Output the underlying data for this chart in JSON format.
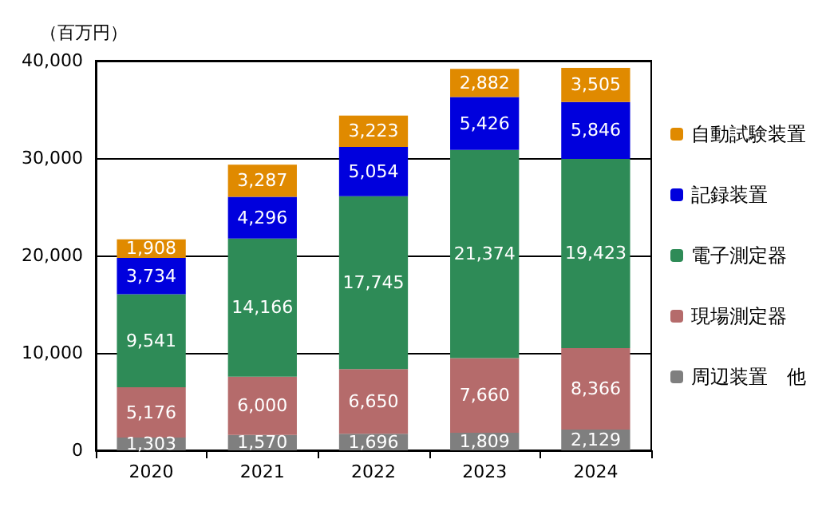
{
  "chart_data": {
    "type": "bar",
    "stacked": true,
    "ylabel": "（百万円）",
    "categories": [
      "2020",
      "2021",
      "2022",
      "2023",
      "2024"
    ],
    "series": [
      {
        "name": "周辺装置　他",
        "color": "#7f7f7f",
        "values": [
          1303,
          1570,
          1696,
          1809,
          2129
        ],
        "value_labels": [
          "1,303",
          "1,570",
          "1,696",
          "1,809",
          "2,129"
        ]
      },
      {
        "name": "現場測定器",
        "color": "#b56b6b",
        "values": [
          5176,
          6000,
          6650,
          7660,
          8366
        ],
        "value_labels": [
          "5,176",
          "6,000",
          "6,650",
          "7,660",
          "8,366"
        ]
      },
      {
        "name": "電子測定器",
        "color": "#2e8b57",
        "values": [
          9541,
          14166,
          17745,
          21374,
          19423
        ],
        "value_labels": [
          "9,541",
          "14,166",
          "17,745",
          "21,374",
          "19,423"
        ]
      },
      {
        "name": "記録装置",
        "color": "#0000dd",
        "values": [
          3734,
          4296,
          5054,
          5426,
          5846
        ],
        "value_labels": [
          "3,734",
          "4,296",
          "5,054",
          "5,426",
          "5,846"
        ]
      },
      {
        "name": "自動試験装置",
        "color": "#e08a00",
        "values": [
          1908,
          3287,
          3223,
          2882,
          3505
        ],
        "value_labels": [
          "1,908",
          "3,287",
          "3,223",
          "2,882",
          "3,505"
        ]
      }
    ],
    "ylim": [
      0,
      40000
    ],
    "yticks": [
      0,
      {
        "value": 10000,
        "label": "10,000"
      },
      {
        "value": 20000,
        "label": "20,000"
      },
      {
        "value": 30000,
        "label": "30,000"
      },
      {
        "value": 40000,
        "label": "40,000"
      }
    ],
    "grid": "y",
    "legend": "right"
  }
}
